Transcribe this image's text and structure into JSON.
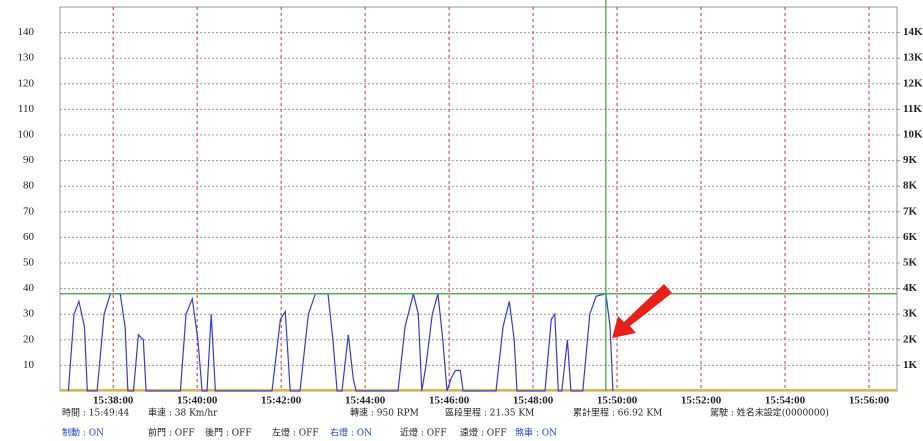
{
  "chart_data": {
    "type": "line",
    "x": [
      "15:36:56",
      "15:37:04",
      "15:37:11",
      "15:37:19",
      "15:37:23",
      "15:37:37",
      "15:37:47",
      "15:37:56",
      "15:38:10",
      "15:38:17",
      "15:38:21",
      "15:38:29",
      "15:38:36",
      "15:38:43",
      "15:38:47",
      "15:39:36",
      "15:39:44",
      "15:39:53",
      "15:40:01",
      "15:40:07",
      "15:40:14",
      "15:40:20",
      "15:40:26",
      "15:41:47",
      "15:41:59",
      "15:42:06",
      "15:42:13",
      "15:42:27",
      "15:42:39",
      "15:42:49",
      "15:43:07",
      "15:43:14",
      "15:43:20",
      "15:43:27",
      "15:43:36",
      "15:43:43",
      "15:43:47",
      "15:44:47",
      "15:44:57",
      "15:45:09",
      "15:45:16",
      "15:45:21",
      "15:45:27",
      "15:45:36",
      "15:45:44",
      "15:45:51",
      "15:45:57",
      "15:46:03",
      "15:46:09",
      "15:46:16",
      "15:46:20",
      "15:47:07",
      "15:47:17",
      "15:47:26",
      "15:47:33",
      "15:47:37",
      "15:48:17",
      "15:48:26",
      "15:48:31",
      "15:48:36",
      "15:48:41",
      "15:48:49",
      "15:48:54",
      "15:49:11",
      "15:49:21",
      "15:49:30",
      "15:49:44",
      "15:49:50",
      "15:49:54"
    ],
    "series": [
      {
        "color": "#3a3ad0",
        "values": [
          0,
          30,
          35,
          25,
          0,
          0,
          30,
          38,
          38,
          25,
          0,
          0,
          22,
          20,
          0,
          0,
          30,
          36,
          20,
          0,
          0,
          30,
          0,
          0,
          28,
          31,
          0,
          0,
          30,
          38,
          38,
          20,
          0,
          0,
          22,
          5,
          0,
          0,
          25,
          38,
          30,
          0,
          10,
          30,
          38,
          20,
          0,
          5,
          8,
          8,
          0,
          0,
          25,
          35,
          20,
          0,
          0,
          28,
          30,
          0,
          0,
          20,
          0,
          0,
          30,
          37,
          38,
          25,
          0
        ]
      }
    ],
    "xlim": [
      "15:36:44",
      "15:56:40"
    ],
    "xticks": [
      "15:38:00",
      "15:40:00",
      "15:42:00",
      "15:44:00",
      "15:46:00",
      "15:48:00",
      "15:50:00",
      "15:52:00",
      "15:54:00",
      "15:56:00"
    ],
    "ylim": [
      0,
      150
    ],
    "yticks": [
      10,
      20,
      30,
      40,
      50,
      60,
      70,
      80,
      90,
      100,
      110,
      120,
      130,
      140
    ],
    "y2lim": [
      0,
      15000
    ],
    "y2ticks": [
      {
        "value": 1000,
        "label": "1K"
      },
      {
        "value": 2000,
        "label": "2K"
      },
      {
        "value": 3000,
        "label": "3K"
      },
      {
        "value": 4000,
        "label": "4K"
      },
      {
        "value": 5000,
        "label": "5K"
      },
      {
        "value": 6000,
        "label": "6K"
      },
      {
        "value": 7000,
        "label": "7K"
      },
      {
        "value": 8000,
        "label": "8K"
      },
      {
        "value": 9000,
        "label": "9K"
      },
      {
        "value": 10000,
        "label": "10K"
      },
      {
        "value": 11000,
        "label": "11K"
      },
      {
        "value": 12000,
        "label": "12K"
      },
      {
        "value": 13000,
        "label": "13K"
      },
      {
        "value": 14000,
        "label": "14K"
      }
    ],
    "grid": true,
    "cursor": {
      "x": "15:49:44",
      "y": 38,
      "color": "#3aa33a"
    },
    "status": [
      [
        {
          "text": "時間 : 15:49:44",
          "color": "#222"
        },
        {
          "text": "車速 : 38 Km/hr",
          "color": "#222"
        },
        {
          "text": "轉速 : 950 RPM",
          "color": "#222"
        },
        {
          "text": "區段里程 : 21.35 KM",
          "color": "#222"
        },
        {
          "text": "累計里程 : 66.92 KM",
          "color": "#222"
        },
        {
          "text": "駕駛 : 姓名未設定(0000000)",
          "color": "#222"
        }
      ],
      [
        {
          "text": "制動 : ON",
          "color": "#2244cc"
        },
        {
          "text": "前門 : OFF",
          "color": "#222"
        },
        {
          "text": "後門 : OFF",
          "color": "#222"
        },
        {
          "text": "左燈 : OFF",
          "color": "#222"
        },
        {
          "text": "右燈 : ON",
          "color": "#2244cc"
        },
        {
          "text": "近燈 : OFF",
          "color": "#222"
        },
        {
          "text": "遠燈 : OFF",
          "color": "#222"
        },
        {
          "text": "煞車 : ON",
          "color": "#2244cc"
        }
      ]
    ]
  }
}
